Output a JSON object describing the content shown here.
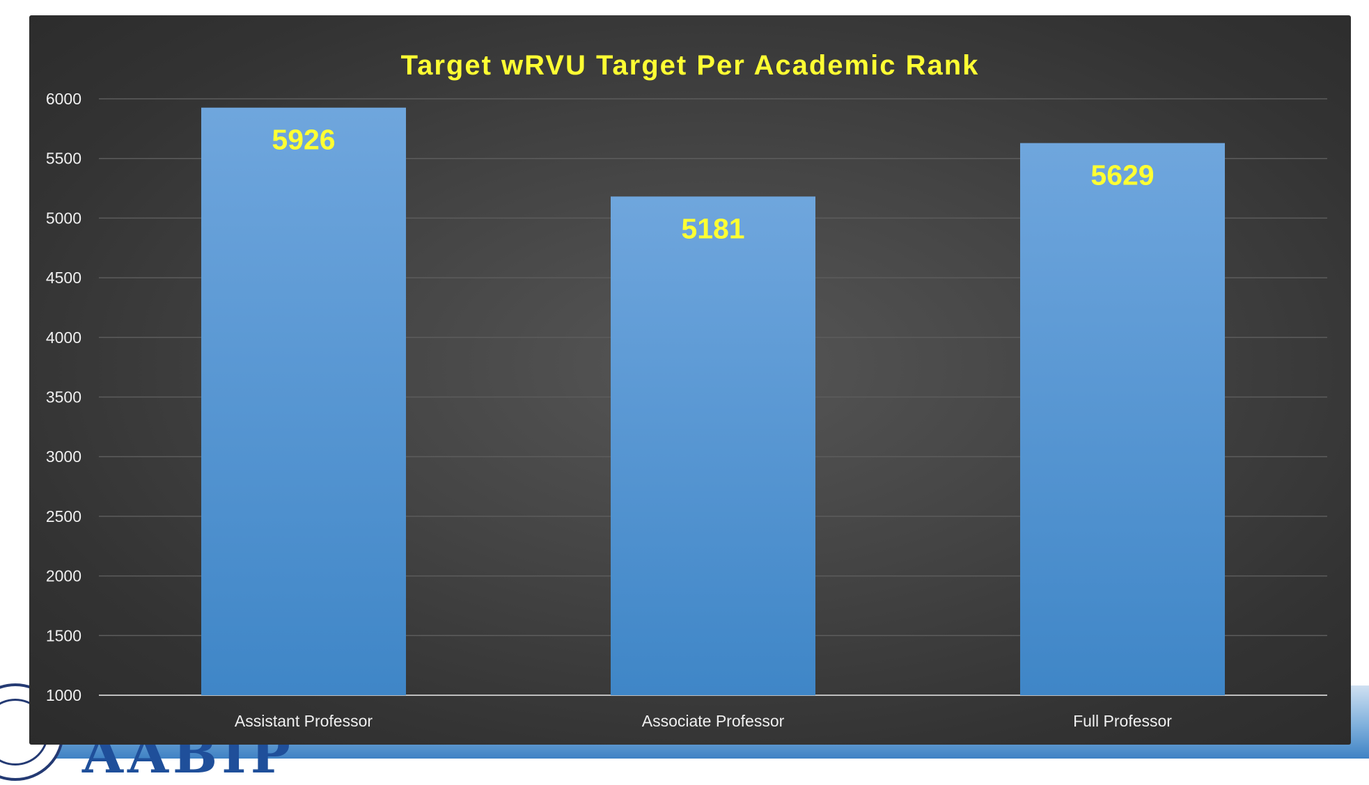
{
  "chart_data": {
    "type": "bar",
    "title": "Target wRVU Target Per Academic Rank",
    "categories": [
      "Assistant Professor",
      "Associate Professor",
      "Full Professor"
    ],
    "values": [
      5926,
      5181,
      5629
    ],
    "data_labels": [
      "5926",
      "5181",
      "5629"
    ],
    "y_ticks": [
      "1000",
      "1500",
      "2000",
      "2500",
      "3000",
      "3500",
      "4000",
      "4500",
      "5000",
      "5500",
      "6000"
    ],
    "y_tick_values": [
      1000,
      1500,
      2000,
      2500,
      3000,
      3500,
      4000,
      4500,
      5000,
      5500,
      6000
    ],
    "ylim": [
      1000,
      6000
    ],
    "xlabel": "",
    "ylabel": "",
    "grid": true,
    "legend": "none"
  },
  "colors": {
    "background": "#3c3c3c",
    "bar_top": "#6fa6dd",
    "bar_bottom": "#3f86c7",
    "title": "#ffff33",
    "data_label": "#ffff33",
    "gridline": "#5c5c5c",
    "axis_text": "#f0f0f0"
  },
  "branding": {
    "logo_text": "AABIP"
  }
}
